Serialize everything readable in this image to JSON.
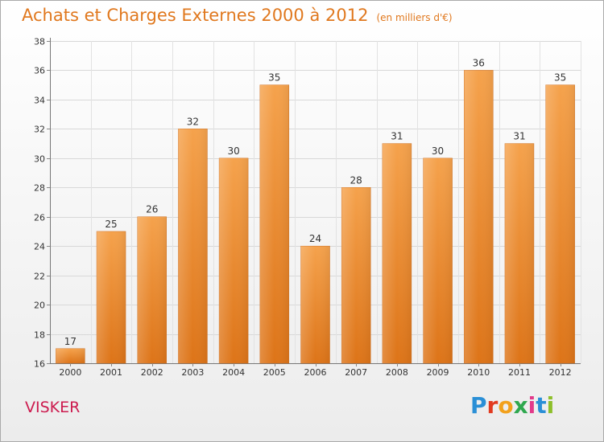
{
  "chart_data": {
    "type": "bar",
    "title": "Achats et Charges Externes 2000 à 2012",
    "subtitle": "(en milliers d'€)",
    "categories": [
      "2000",
      "2001",
      "2002",
      "2003",
      "2004",
      "2005",
      "2006",
      "2007",
      "2008",
      "2009",
      "2010",
      "2011",
      "2012"
    ],
    "values": [
      17,
      25,
      26,
      32,
      30,
      35,
      24,
      28,
      31,
      30,
      36,
      31,
      35
    ],
    "ylim": [
      16,
      38
    ],
    "yticks": [
      16,
      18,
      20,
      22,
      24,
      26,
      28,
      30,
      32,
      34,
      36,
      38
    ],
    "grid": true,
    "bar_color": "#f0923a"
  },
  "footer": {
    "place": "VISKER",
    "logo_letters": [
      "P",
      "r",
      "o",
      "x",
      "i",
      "t",
      "i"
    ],
    "logo_colors": [
      "#2a8fd6",
      "#e23a1f",
      "#f2a11c",
      "#2fa84f",
      "#e23a8a",
      "#2a8fd6",
      "#8dbf2a"
    ]
  }
}
